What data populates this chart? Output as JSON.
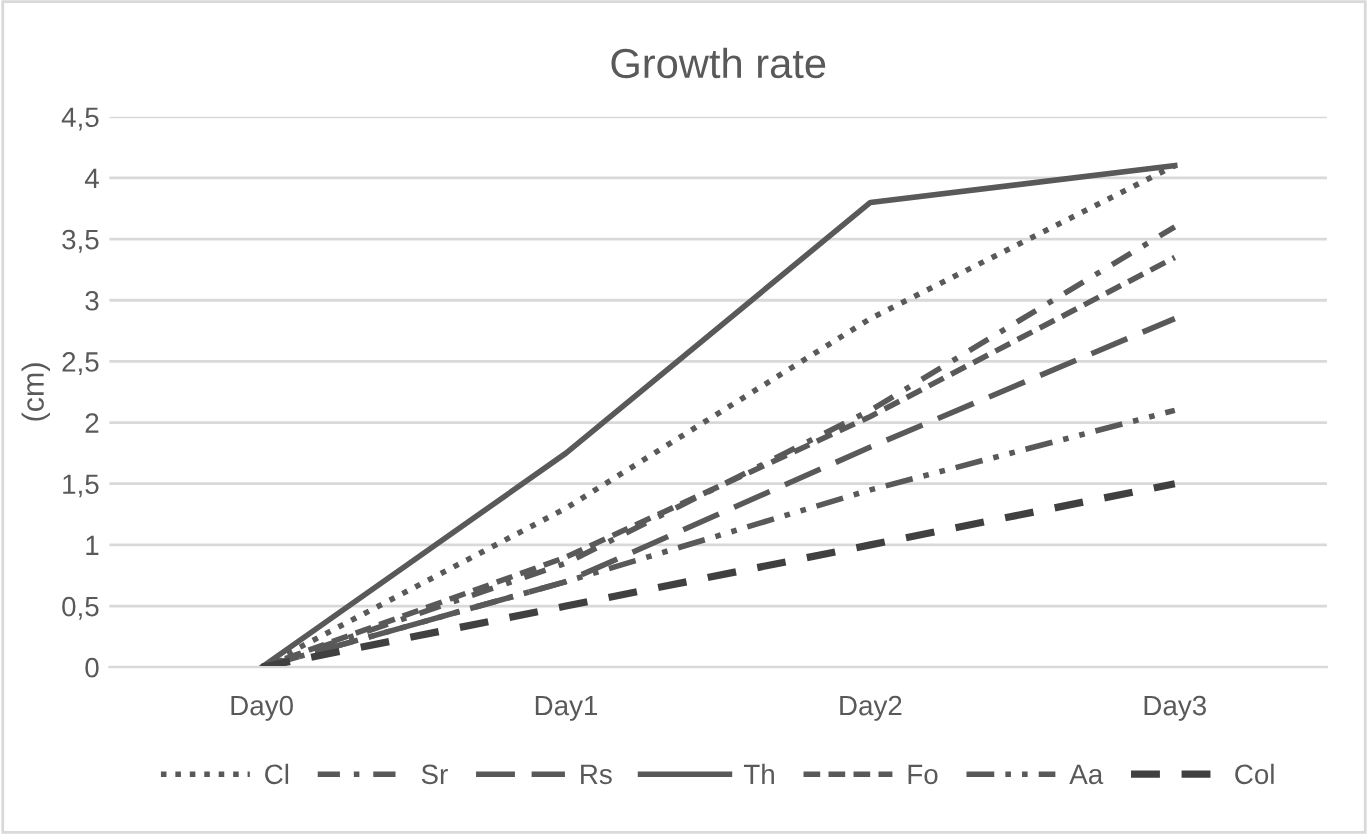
{
  "chart_data": {
    "type": "line",
    "title": "Growth rate",
    "ylabel": "(cm)",
    "categories": [
      "Day0",
      "Day1",
      "Day2",
      "Day3"
    ],
    "series": [
      {
        "name": "Cl",
        "color": "#595959",
        "line_style": "dotted",
        "values": [
          0,
          1.3,
          2.85,
          4.1
        ]
      },
      {
        "name": "Sr",
        "color": "#595959",
        "line_style": "dashdot",
        "values": [
          0,
          0.85,
          2.1,
          3.6
        ]
      },
      {
        "name": "Rs",
        "color": "#595959",
        "line_style": "longdash",
        "values": [
          0,
          0.7,
          1.8,
          2.85
        ]
      },
      {
        "name": "Th",
        "color": "#595959",
        "line_style": "solid",
        "values": [
          0,
          1.75,
          3.8,
          4.1
        ]
      },
      {
        "name": "Fo",
        "color": "#595959",
        "line_style": "dashed",
        "values": [
          0,
          0.9,
          2.05,
          3.35
        ]
      },
      {
        "name": "Aa",
        "color": "#595959",
        "line_style": "longdashdotdot",
        "values": [
          0,
          0.7,
          1.45,
          2.1
        ]
      },
      {
        "name": "Col",
        "color": "#404040",
        "line_style": "heavydash",
        "values": [
          0,
          0.5,
          1.0,
          1.5
        ]
      }
    ],
    "ylim": [
      0,
      4.5
    ],
    "yticks": [
      0,
      {
        "value": 0.5,
        "label": "0,5"
      },
      1,
      {
        "value": 1.5,
        "label": "1,5"
      },
      2,
      {
        "value": 2.5,
        "label": "2,5"
      },
      3,
      {
        "value": 3.5,
        "label": "3,5"
      },
      4,
      {
        "value": 4.5,
        "label": "4,5"
      }
    ],
    "grid": "y",
    "legend": "bottom",
    "marker": "none"
  }
}
